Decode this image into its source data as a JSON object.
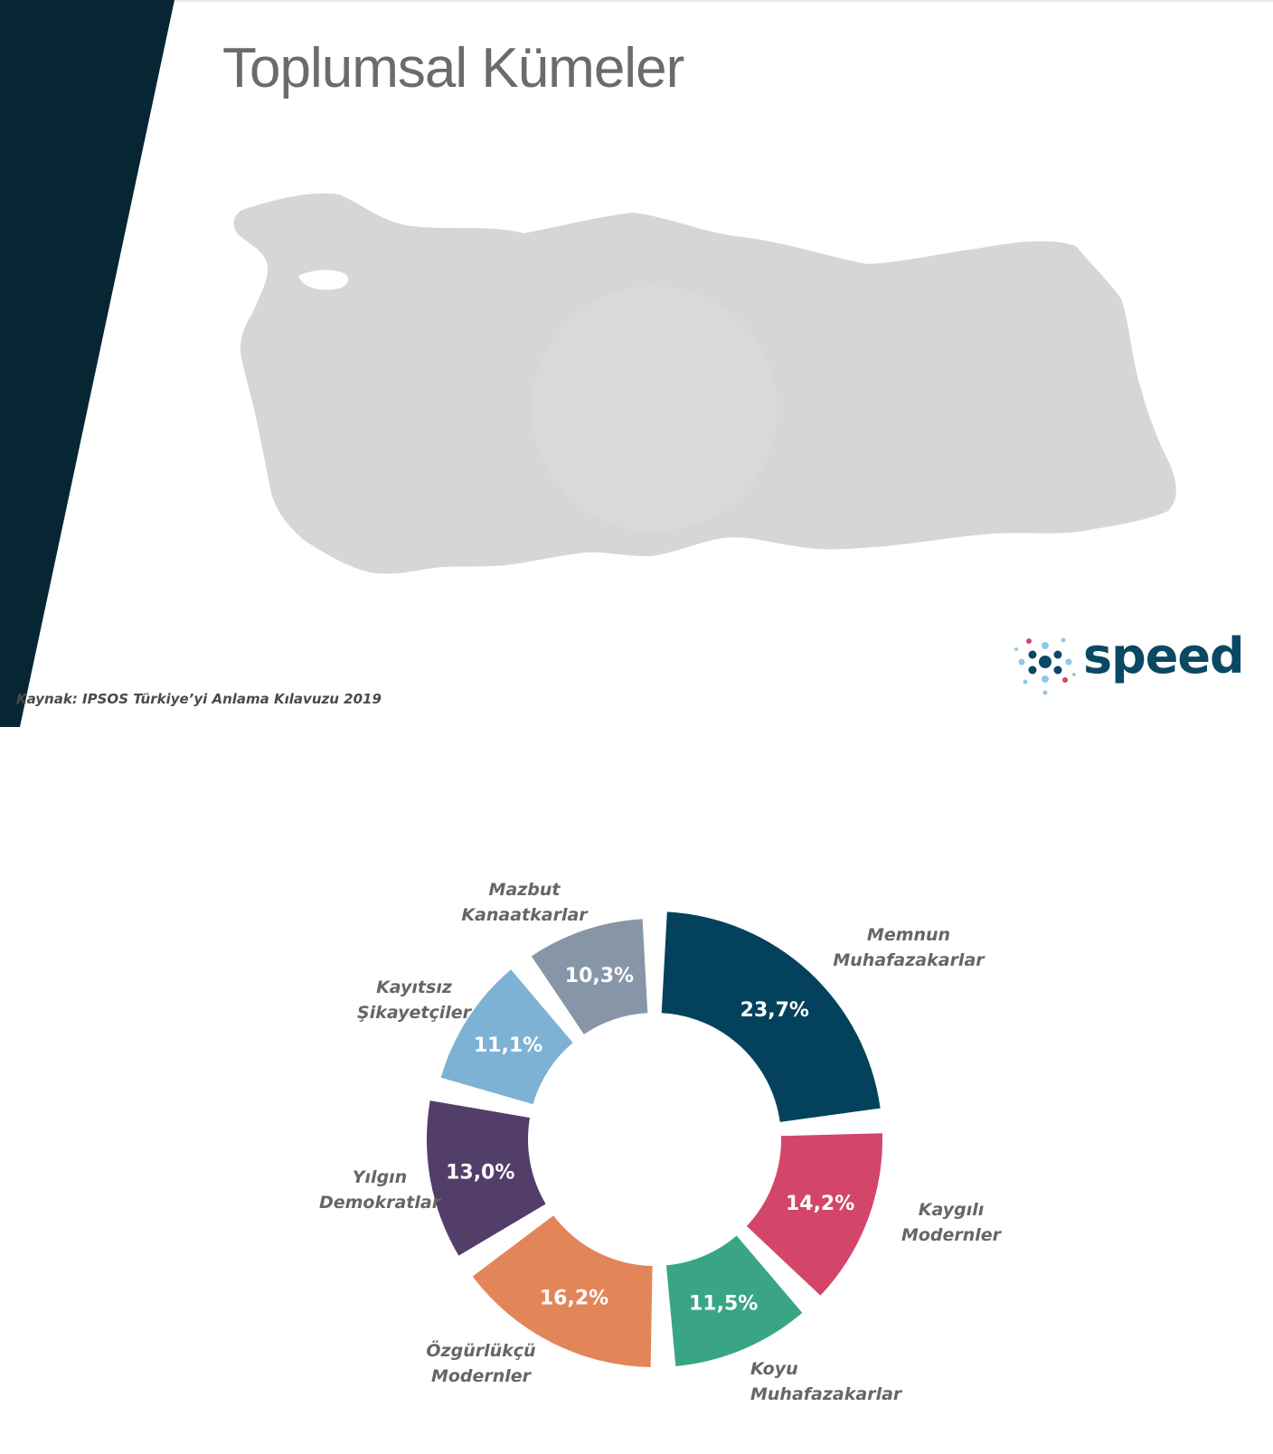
{
  "slide": {
    "title": "Toplumsal Kümeler",
    "source": "Kaynak: IPSOS Türkiye’yi Anlama Kılavuzu 2019",
    "logo_text": "speed"
  },
  "colors": {
    "sidebar": "#062634",
    "map": "#d6d6d6",
    "title": "#6b6b6b"
  },
  "chart_data": {
    "type": "pie",
    "style": "exploded donut",
    "categories": [
      "Memnun Muhafazakarlar",
      "Kaygılı Modernler",
      "Koyu Muhafazakarlar",
      "Özgürlükçü Modernler",
      "Yılgın Demokratlar",
      "Kayıtsız Şikayetçiler",
      "Mazbut Kanaatkarlar"
    ],
    "values": [
      23.7,
      14.2,
      11.5,
      16.2,
      13.0,
      11.1,
      10.3
    ],
    "value_labels": [
      "23,7%",
      "14,2%",
      "11,5%",
      "16,2%",
      "13,0%",
      "11,1%",
      "10,3%"
    ],
    "label_lines": [
      [
        "Memnun",
        "Muhafazakarlar"
      ],
      [
        "Kaygılı",
        "Modernler"
      ],
      [
        "Koyu",
        "Muhafazakarlar"
      ],
      [
        "Özgürlükçü",
        "Modernler"
      ],
      [
        "Yılgın",
        "Demokratlar"
      ],
      [
        "Kayıtsız",
        "Şikayetçiler"
      ],
      [
        "Mazbut",
        "Kanaatkarlar"
      ]
    ],
    "colors": [
      "#04415c",
      "#d3466a",
      "#39a585",
      "#e2865a",
      "#533e6a",
      "#7db2d4",
      "#8796a6"
    ]
  }
}
